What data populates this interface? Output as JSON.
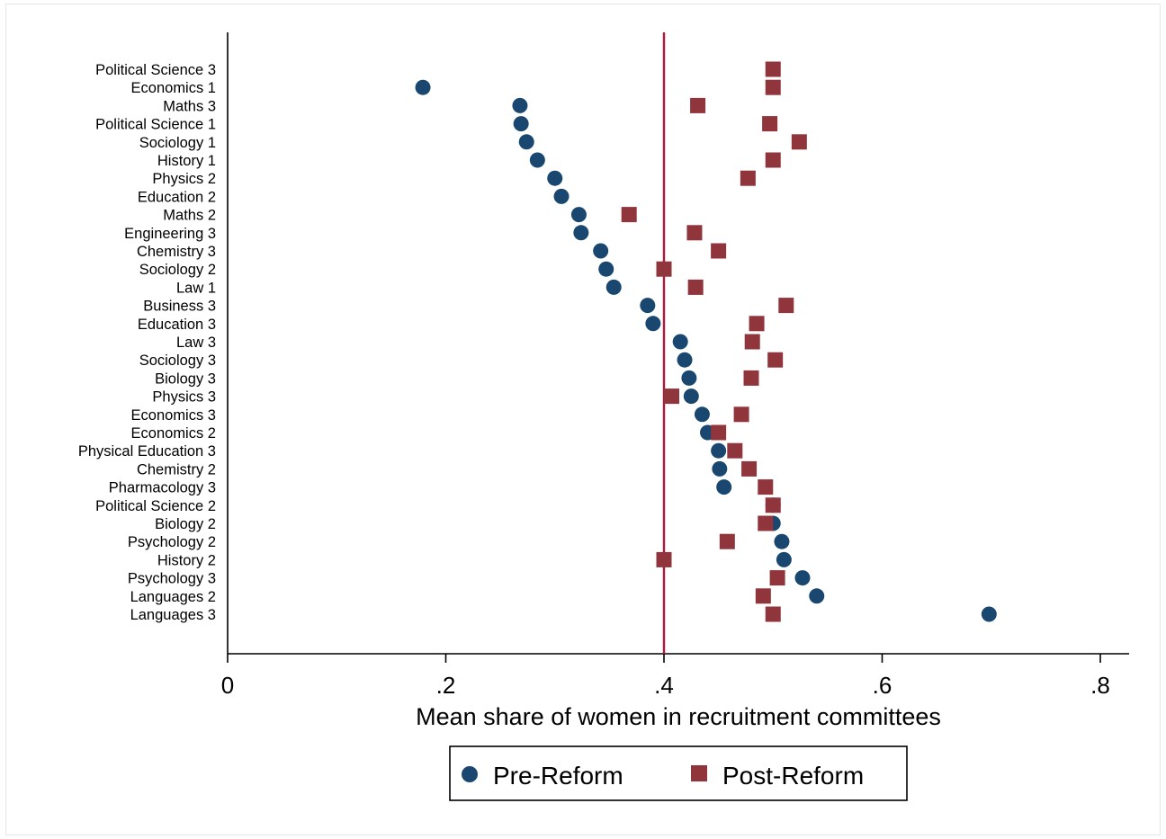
{
  "chart_data": {
    "type": "scatter",
    "orientation": "horizontal",
    "title": "",
    "xlabel": "Mean share of women in recruitment committees",
    "ylabel": "",
    "xlim": [
      0,
      0.82
    ],
    "x_ticks": [
      {
        "value": 0,
        "label": "0"
      },
      {
        "value": 0.2,
        "label": ".2"
      },
      {
        "value": 0.4,
        "label": ".4"
      },
      {
        "value": 0.6,
        "label": ".6"
      },
      {
        "value": 0.8,
        "label": ".8"
      }
    ],
    "grid": false,
    "reference_line": {
      "x": 0.4,
      "color": "#b2163a"
    },
    "legend_position": "bottom",
    "categories": [
      "Political Science 3",
      "Economics 1",
      "Maths 3",
      "Political Science 1",
      "Sociology 1",
      "History 1",
      "Physics 2",
      "Education 2",
      "Maths 2",
      "Engineering 3",
      "Chemistry 3",
      "Sociology 2",
      "Law 1",
      "Business 3",
      "Education 3",
      "Law 3",
      "Sociology 3",
      "Biology 3",
      "Physics 3",
      "Economics 3",
      "Economics 2",
      "Physical Education 3",
      "Chemistry 2",
      "Pharmacology 3",
      "Political Science 2",
      "Biology 2",
      "Psychology 2",
      "History 2",
      "Psychology 3",
      "Languages 2",
      "Languages 3"
    ],
    "series": [
      {
        "name": "Pre-Reform",
        "marker": "circle",
        "color": "#1a476f",
        "values": [
          null,
          0.179,
          0.268,
          0.269,
          0.274,
          0.284,
          0.3,
          0.306,
          0.322,
          0.324,
          0.342,
          0.347,
          0.354,
          0.385,
          0.39,
          0.415,
          0.419,
          0.423,
          0.425,
          0.435,
          0.44,
          0.45,
          0.451,
          0.455,
          0.5,
          0.5,
          0.508,
          0.51,
          0.527,
          0.54,
          0.698
        ]
      },
      {
        "name": "Post-Reform",
        "marker": "square",
        "color": "#90353b",
        "values": [
          0.5,
          0.5,
          0.431,
          0.497,
          0.524,
          0.5,
          0.477,
          null,
          0.368,
          0.428,
          0.45,
          0.4,
          0.429,
          0.512,
          0.485,
          0.481,
          0.502,
          0.48,
          0.407,
          0.471,
          0.45,
          0.465,
          0.478,
          0.493,
          0.5,
          0.493,
          0.458,
          0.4,
          0.504,
          0.491,
          0.5
        ]
      }
    ]
  }
}
